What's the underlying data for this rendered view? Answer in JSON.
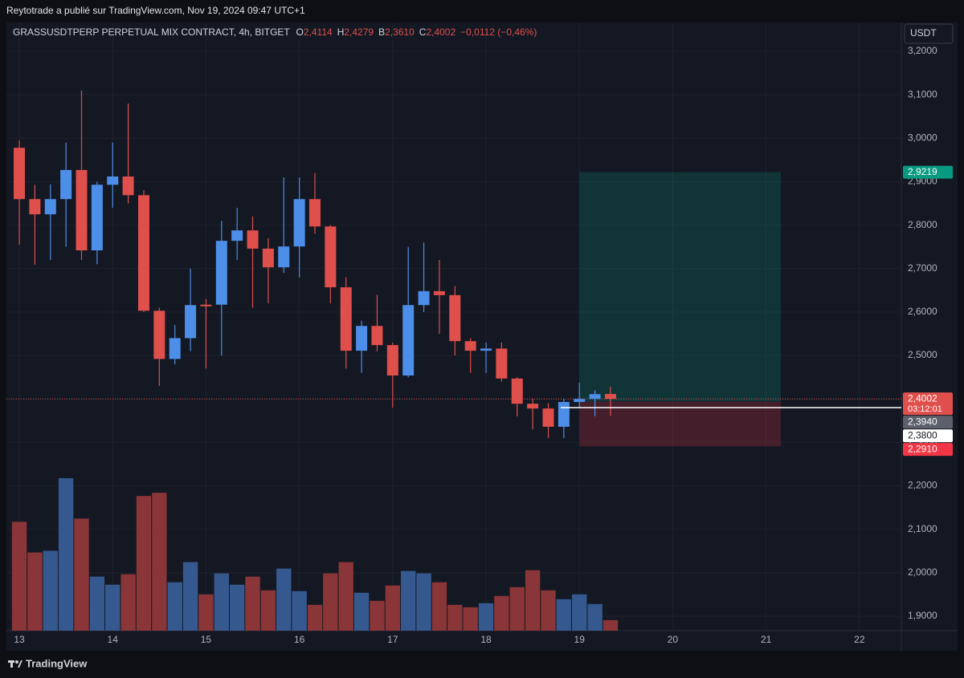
{
  "page": {
    "attribution": "Reytotrade a publié sur TradingView.com, Nov 19, 2024 09:47 UTC+1",
    "currency": "USDT",
    "brand": "TradingView"
  },
  "chart_data": {
    "type": "candlestick",
    "legend": {
      "symbol": "GRASSUSDTPERP PERPETUAL MIX CONTRACT, 4h, BITGET",
      "items": [
        {
          "key": "O",
          "label": "2,4114"
        },
        {
          "key": "H",
          "label": "2,4279"
        },
        {
          "key": "B",
          "label": "2,3610"
        },
        {
          "key": "C",
          "label": "2,4002"
        }
      ],
      "change": "−0,0112 (−0,46%)"
    },
    "x": [
      13,
      13.1667,
      13.3333,
      13.5,
      13.6667,
      13.8333,
      14,
      14.1667,
      14.3333,
      14.5,
      14.6667,
      14.8333,
      15,
      15.1667,
      15.3333,
      15.5,
      15.6667,
      15.8333,
      16,
      16.1667,
      16.3333,
      16.5,
      16.6667,
      16.8333,
      17,
      17.1667,
      17.3333,
      17.5,
      17.6667,
      17.8333,
      18,
      18.1667,
      18.3333,
      18.5,
      18.6667,
      18.8333,
      19,
      19.1667,
      19.3333
    ],
    "open": [
      2.978,
      2.86,
      2.825,
      2.86,
      2.927,
      2.742,
      2.893,
      2.912,
      2.869,
      2.603,
      2.492,
      2.54,
      2.617,
      2.617,
      2.764,
      2.788,
      2.746,
      2.703,
      2.751,
      2.86,
      2.797,
      2.657,
      2.511,
      2.568,
      2.524,
      2.454,
      2.616,
      2.648,
      2.639,
      2.533,
      2.511,
      2.516,
      2.447,
      2.389,
      2.378,
      2.336,
      2.393,
      2.4,
      2.4114
    ],
    "high": [
      2.995,
      2.893,
      2.894,
      2.99,
      3.11,
      2.9,
      2.99,
      3.08,
      2.88,
      2.61,
      2.57,
      2.7,
      2.63,
      2.81,
      2.84,
      2.82,
      2.77,
      2.91,
      2.91,
      2.92,
      2.8,
      2.68,
      2.58,
      2.64,
      2.53,
      2.75,
      2.76,
      2.72,
      2.66,
      2.54,
      2.53,
      2.53,
      2.45,
      2.4,
      2.39,
      2.4,
      2.437,
      2.42,
      2.4279
    ],
    "low": [
      2.755,
      2.709,
      2.72,
      2.75,
      2.72,
      2.71,
      2.84,
      2.85,
      2.6,
      2.43,
      2.48,
      2.51,
      2.47,
      2.5,
      2.72,
      2.61,
      2.62,
      2.69,
      2.68,
      2.78,
      2.62,
      2.47,
      2.46,
      2.51,
      2.38,
      2.45,
      2.6,
      2.55,
      2.5,
      2.46,
      2.46,
      2.44,
      2.36,
      2.33,
      2.31,
      2.31,
      2.38,
      2.36,
      2.361
    ],
    "close": [
      2.86,
      2.825,
      2.86,
      2.927,
      2.742,
      2.893,
      2.912,
      2.869,
      2.603,
      2.492,
      2.54,
      2.616,
      2.615,
      2.764,
      2.788,
      2.746,
      2.703,
      2.751,
      2.86,
      2.797,
      2.657,
      2.511,
      2.568,
      2.524,
      2.454,
      2.616,
      2.648,
      2.639,
      2.533,
      2.511,
      2.516,
      2.447,
      2.389,
      2.378,
      2.336,
      2.393,
      2.4,
      2.411,
      2.4002
    ],
    "volume": [
      135,
      97,
      99,
      189,
      139,
      67,
      57,
      70,
      167,
      171,
      60,
      85,
      45,
      71,
      57,
      67,
      50,
      77,
      49,
      32,
      71,
      85,
      47,
      37,
      56,
      74,
      71,
      60,
      32,
      29,
      34,
      43,
      54,
      75,
      50,
      39,
      45,
      33,
      13
    ],
    "up_color": "#4d8ee8",
    "down_color": "#df4f4c",
    "up_volume_color": "#35598f",
    "down_volume_color": "#8a3537",
    "xlim": [
      12.862,
      22.449
    ],
    "xticks": [
      13,
      14,
      15,
      16,
      17,
      18,
      19,
      20,
      21,
      22
    ],
    "ylim": [
      1.8667,
      3.2665
    ],
    "yticks": [
      {
        "value": 3.2,
        "label": "3,2000"
      },
      {
        "value": 3.1,
        "label": "3,1000"
      },
      {
        "value": 3.0,
        "label": "3,0000"
      },
      {
        "value": 2.9,
        "label": "2,9000"
      },
      {
        "value": 2.8,
        "label": "2,8000"
      },
      {
        "value": 2.7,
        "label": "2,7000"
      },
      {
        "value": 2.6,
        "label": "2,6000"
      },
      {
        "value": 2.5,
        "label": "2,5000"
      },
      {
        "value": 2.4,
        "label": "2,4000"
      },
      {
        "value": 2.3,
        "label": "2,3000"
      },
      {
        "value": 2.2,
        "label": "2,2000"
      },
      {
        "value": 2.1,
        "label": "2,1000"
      },
      {
        "value": 2.0,
        "label": "2,0000"
      },
      {
        "value": 1.9,
        "label": "1,9000"
      }
    ],
    "grid": true,
    "position": {
      "start": 19,
      "end": 21.158,
      "entry": {
        "value": 2.394,
        "label": "2,3940"
      },
      "target": {
        "value": 2.9219,
        "label": "2,9219"
      },
      "stop": {
        "value": 2.291,
        "label": "2,2910"
      }
    },
    "last_price": {
      "value": 2.4002,
      "label": "2,4002",
      "countdown": "03:12:01"
    },
    "price_line": {
      "start": 18.8,
      "value": 2.38,
      "label": "2,3800"
    }
  }
}
